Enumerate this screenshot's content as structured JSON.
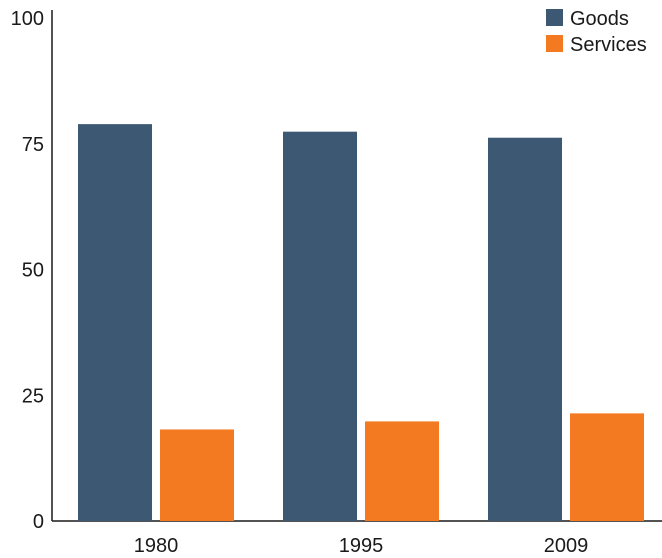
{
  "chart_data": {
    "type": "bar",
    "categories": [
      "1980",
      "1995",
      "2009"
    ],
    "series": [
      {
        "name": "Goods",
        "values": [
          78.9,
          77.4,
          76.2
        ],
        "color": "#3d5872"
      },
      {
        "name": "Services",
        "values": [
          18.2,
          19.8,
          21.4
        ],
        "color": "#f47a22"
      }
    ],
    "ylim": [
      0,
      100
    ],
    "yticks": [
      0,
      25,
      50,
      75,
      100
    ],
    "grid": false,
    "legend_position": "top-right",
    "title": "",
    "xlabel": "",
    "ylabel": ""
  }
}
